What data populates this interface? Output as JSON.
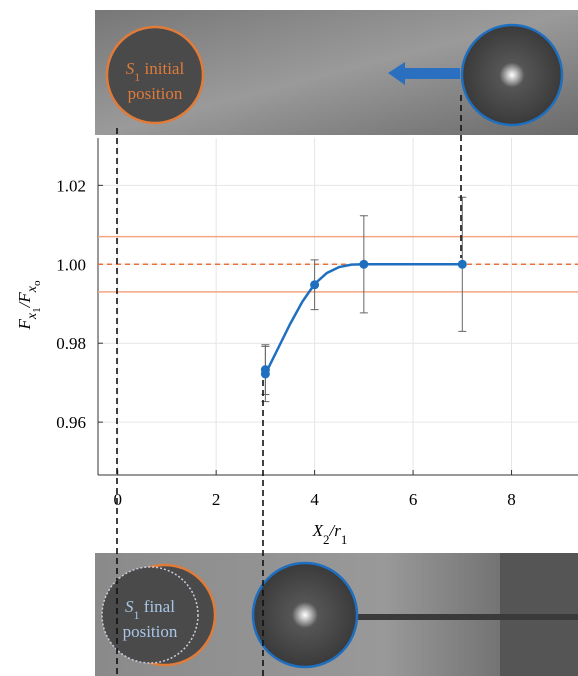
{
  "chart_data": {
    "type": "scatter",
    "xlabel_parts": [
      "X",
      "2",
      "/r",
      "1"
    ],
    "ylabel_parts": [
      "F",
      "x",
      "1",
      "/F",
      "x",
      "o"
    ],
    "xlim": [
      -0.4,
      9.35
    ],
    "ylim": [
      0.9466,
      1.032
    ],
    "xticks": [
      0,
      2,
      4,
      6,
      8
    ],
    "yticks": [
      0.96,
      0.98,
      {
        "value": 1,
        "label": "1.00"
      },
      1.02
    ],
    "grid": true,
    "series": [
      {
        "color": "#1f6fc0",
        "x": [
          3,
          3,
          4,
          5,
          7
        ],
        "values": [
          0.9733,
          0.9722,
          0.9948,
          1.0,
          1.0
        ],
        "errors": [
          0.0063,
          0.007,
          0.0063,
          0.0123,
          0.017
        ]
      }
    ],
    "fit": {
      "color": "#1f6fc0",
      "x": [
        3,
        3.25,
        3.5,
        3.75,
        4,
        4.25,
        4.5,
        4.75,
        5,
        6,
        7
      ],
      "values": [
        0.9722,
        0.9785,
        0.9848,
        0.9905,
        0.995,
        0.9978,
        0.9993,
        0.9999,
        1.0,
        1.0,
        1.0
      ]
    },
    "reference_lines": [
      {
        "y": 1.007,
        "style": "solid",
        "color": "#f4a582"
      },
      {
        "y": 1.0,
        "style": "dashed",
        "color": "#e8703a"
      },
      {
        "y": 0.993,
        "style": "solid",
        "color": "#f4a582"
      }
    ],
    "annotations": [
      {
        "parts": [
          "S",
          "1",
          " initial",
          "position"
        ],
        "color": "#e07b39"
      },
      {
        "parts": [
          "S",
          "1",
          " final",
          "position"
        ],
        "color": "#a9c6e6"
      }
    ]
  }
}
